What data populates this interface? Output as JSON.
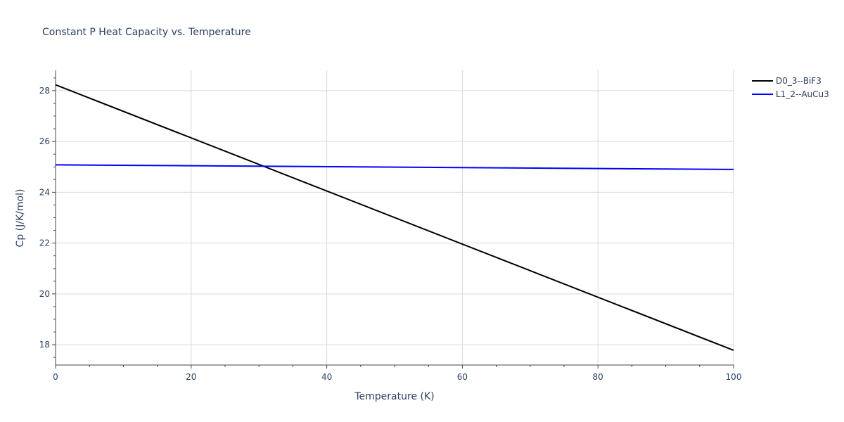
{
  "chart_data": {
    "type": "line",
    "title": "Constant P Heat Capacity vs. Temperature",
    "xlabel": "Temperature (K)",
    "ylabel": "Cp (J/K/mol)",
    "xlim": [
      0,
      100
    ],
    "ylim": [
      17.2,
      28.8
    ],
    "x_ticks": [
      0,
      20,
      40,
      60,
      80,
      100
    ],
    "y_ticks": [
      18,
      20,
      22,
      24,
      26,
      28
    ],
    "grid": true,
    "legend_position": "top-right",
    "series": [
      {
        "name": "D0_3--BiF3",
        "color": "#000000",
        "x": [
          0,
          100
        ],
        "y": [
          28.23,
          17.78
        ]
      },
      {
        "name": "L1_2--AuCu3",
        "color": "#0000ff",
        "x": [
          0,
          100
        ],
        "y": [
          25.08,
          24.9
        ]
      }
    ]
  }
}
